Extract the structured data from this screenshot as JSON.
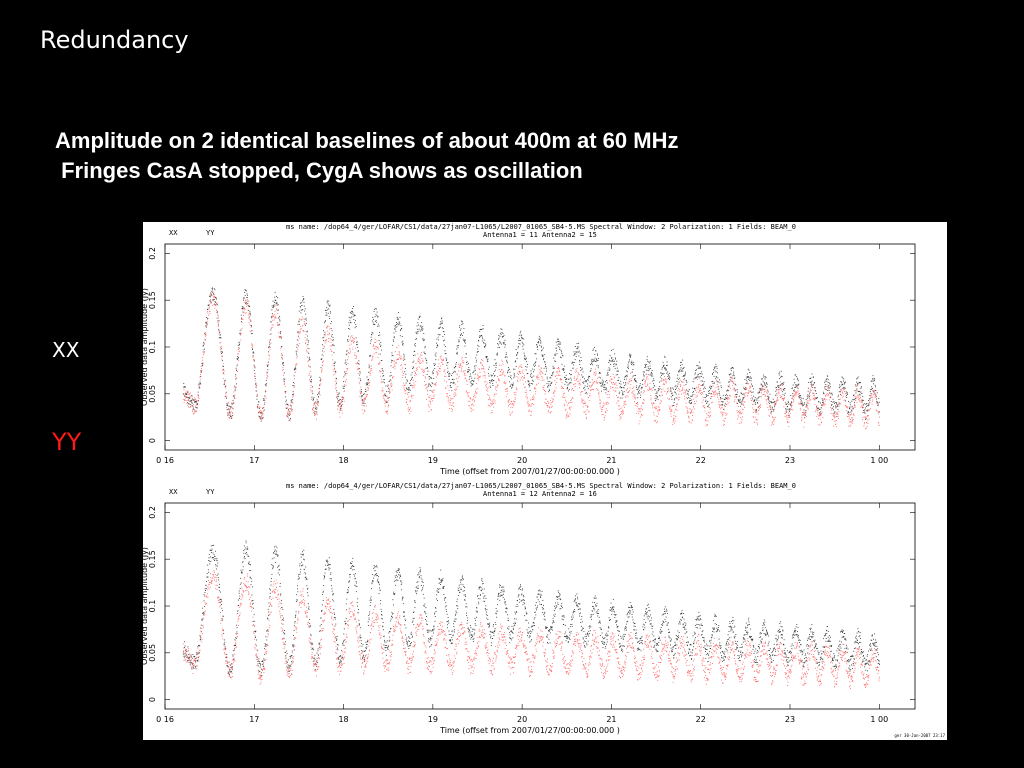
{
  "slide": {
    "title": "Redundancy",
    "subtitle_line1": "Amplitude on 2 identical baselines of about 400m at 60 MHz",
    "subtitle_line2": " Fringes CasA stopped, CygA shows as oscillation",
    "legend_xx": "XX",
    "legend_yy": "YY"
  },
  "colors": {
    "background": "#000000",
    "text": "#ffffff",
    "yy": "#ff1a1a",
    "xx_points": "#333333",
    "yy_points": "#ff6666"
  },
  "footer_stamp": "ger 30-Jan-2007 23:17",
  "chart_data": [
    {
      "type": "scatter",
      "header_line1": "ms name: /dop64_4/ger/LOFAR/CS1/data/27jan07-L1065/L2007_01065_SB4-5.MS Spectral Window: 2 Polarization: 1 Fields: BEAM_0",
      "header_line2": "Antenna1 = 11 Antenna2 = 15",
      "legend": [
        "XX",
        "YY"
      ],
      "xlabel": "Time (offset from  2007/01/27/00:00:00.000 )",
      "ylabel": "Observed data amplitude (Jy)",
      "xlim": [
        16.0,
        24.4
      ],
      "ylim": [
        -0.01,
        0.21
      ],
      "x_tick_labels": [
        "0 16",
        "17",
        "18",
        "19",
        "20",
        "21",
        "22",
        "23",
        "1 00"
      ],
      "x_tick_values": [
        16,
        17,
        18,
        19,
        20,
        21,
        22,
        23,
        24
      ],
      "y_tick_labels": [
        "0",
        "0.05",
        "0.1",
        "0.15",
        "0.2"
      ],
      "y_tick_values": [
        0,
        0.05,
        0.1,
        0.15,
        0.2
      ],
      "x_range": [
        16.2,
        24.0
      ],
      "series": [
        {
          "name": "XX",
          "envelope_max": [
            [
              16.2,
              0.07
            ],
            [
              16.4,
              0.16
            ],
            [
              17.0,
              0.155
            ],
            [
              18.0,
              0.14
            ],
            [
              19.0,
              0.125
            ],
            [
              20.0,
              0.11
            ],
            [
              21.0,
              0.09
            ],
            [
              22.0,
              0.075
            ],
            [
              23.0,
              0.065
            ],
            [
              24.0,
              0.06
            ]
          ],
          "envelope_min": [
            [
              16.2,
              0.04
            ],
            [
              17.0,
              0.025
            ],
            [
              18.0,
              0.04
            ],
            [
              19.0,
              0.06
            ],
            [
              20.0,
              0.065
            ],
            [
              21.0,
              0.055
            ],
            [
              22.0,
              0.045
            ],
            [
              23.0,
              0.035
            ],
            [
              24.0,
              0.03
            ]
          ]
        },
        {
          "name": "YY",
          "envelope_max": [
            [
              16.2,
              0.06
            ],
            [
              16.4,
              0.155
            ],
            [
              17.0,
              0.145
            ],
            [
              18.0,
              0.11
            ],
            [
              19.0,
              0.085
            ],
            [
              20.0,
              0.075
            ],
            [
              21.0,
              0.065
            ],
            [
              22.0,
              0.06
            ],
            [
              23.0,
              0.055
            ],
            [
              24.0,
              0.05
            ]
          ],
          "envelope_min": [
            [
              16.2,
              0.04
            ],
            [
              17.0,
              0.025
            ],
            [
              18.0,
              0.035
            ],
            [
              19.0,
              0.04
            ],
            [
              20.0,
              0.035
            ],
            [
              21.0,
              0.03
            ],
            [
              22.0,
              0.025
            ],
            [
              23.0,
              0.025
            ],
            [
              24.0,
              0.02
            ]
          ]
        }
      ]
    },
    {
      "type": "scatter",
      "header_line1": "ms name: /dop64_4/ger/LOFAR/CS1/data/27jan07-L1065/L2007_01065_SB4-5.MS Spectral Window: 2 Polarization: 1 Fields: BEAM_0",
      "header_line2": "Antenna1 = 12 Antenna2 = 16",
      "legend": [
        "XX",
        "YY"
      ],
      "xlabel": "Time (offset from  2007/01/27/00:00:00.000 )",
      "ylabel": "Observed data amplitude (Jy)",
      "xlim": [
        16.0,
        24.4
      ],
      "ylim": [
        -0.01,
        0.21
      ],
      "x_tick_labels": [
        "0 16",
        "17",
        "18",
        "19",
        "20",
        "21",
        "22",
        "23",
        "1 00"
      ],
      "x_tick_values": [
        16,
        17,
        18,
        19,
        20,
        21,
        22,
        23,
        24
      ],
      "y_tick_labels": [
        "0",
        "0.05",
        "0.1",
        "0.15",
        "0.2"
      ],
      "y_tick_values": [
        0,
        0.05,
        0.1,
        0.15,
        0.2
      ],
      "x_range": [
        16.2,
        24.0
      ],
      "series": [
        {
          "name": "XX",
          "envelope_max": [
            [
              16.2,
              0.07
            ],
            [
              16.4,
              0.16
            ],
            [
              17.0,
              0.16
            ],
            [
              18.0,
              0.145
            ],
            [
              19.0,
              0.13
            ],
            [
              20.0,
              0.115
            ],
            [
              21.0,
              0.1
            ],
            [
              22.0,
              0.085
            ],
            [
              23.0,
              0.075
            ],
            [
              24.0,
              0.065
            ]
          ],
          "envelope_min": [
            [
              16.2,
              0.04
            ],
            [
              17.0,
              0.03
            ],
            [
              18.0,
              0.045
            ],
            [
              19.0,
              0.065
            ],
            [
              20.0,
              0.07
            ],
            [
              21.0,
              0.06
            ],
            [
              22.0,
              0.05
            ],
            [
              23.0,
              0.045
            ],
            [
              24.0,
              0.035
            ]
          ]
        },
        {
          "name": "YY",
          "envelope_max": [
            [
              16.2,
              0.06
            ],
            [
              16.4,
              0.135
            ],
            [
              17.0,
              0.125
            ],
            [
              18.0,
              0.1
            ],
            [
              19.0,
              0.08
            ],
            [
              20.0,
              0.07
            ],
            [
              21.0,
              0.065
            ],
            [
              22.0,
              0.06
            ],
            [
              23.0,
              0.055
            ],
            [
              24.0,
              0.05
            ]
          ],
          "envelope_min": [
            [
              16.2,
              0.04
            ],
            [
              17.0,
              0.025
            ],
            [
              18.0,
              0.035
            ],
            [
              19.0,
              0.035
            ],
            [
              20.0,
              0.035
            ],
            [
              21.0,
              0.03
            ],
            [
              22.0,
              0.025
            ],
            [
              23.0,
              0.025
            ],
            [
              24.0,
              0.02
            ]
          ]
        }
      ]
    }
  ]
}
